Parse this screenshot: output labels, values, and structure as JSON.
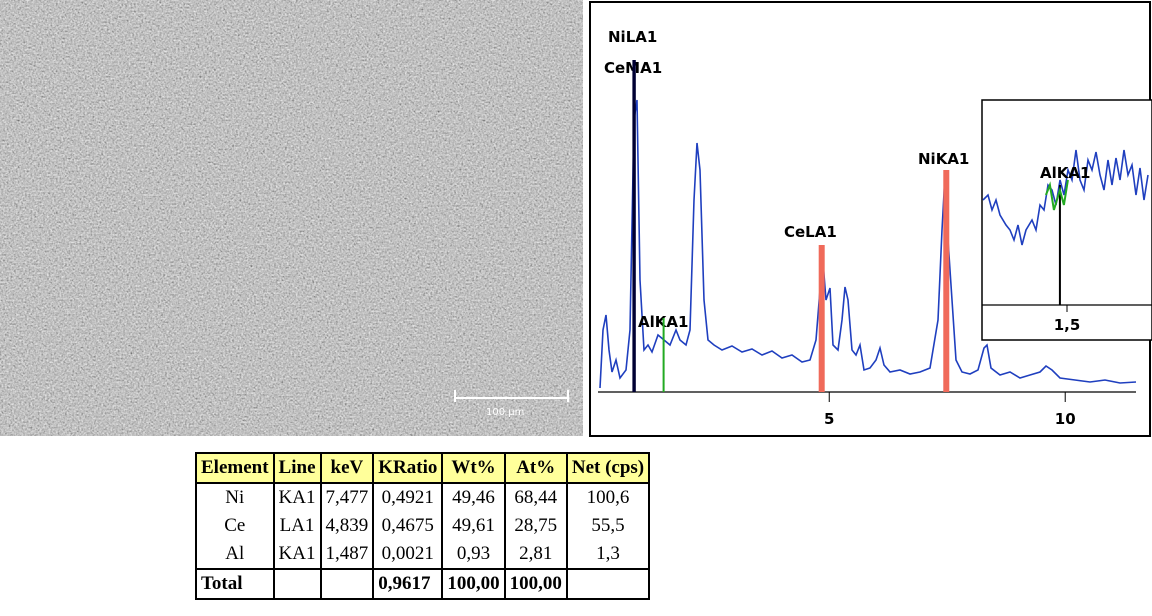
{
  "sem_image": {
    "scale_bar": "100 µm"
  },
  "spectrum": {
    "xlim": [
      0.1,
      11.5
    ],
    "xticks": [
      5,
      10
    ],
    "peaks": [
      {
        "label": "NiLA1",
        "kev": 0.85,
        "color": "#000033"
      },
      {
        "label": "CeMA1",
        "kev": 0.88,
        "color": "#000033"
      },
      {
        "label": "AlKA1",
        "kev": 1.49,
        "color": "#22aa22"
      },
      {
        "label": "CeLA1",
        "kev": 4.84,
        "color": "#f06a5a"
      },
      {
        "label": "NiKA1",
        "kev": 7.48,
        "color": "#f06a5a"
      }
    ],
    "inset": {
      "xlim": [
        1.38,
        1.62
      ],
      "xticks": [
        {
          "value": 1.5,
          "label": "1,5"
        }
      ],
      "peak": {
        "label": "AlKA1",
        "kev": 1.49,
        "color": "#22aa22"
      }
    }
  },
  "table": {
    "header": [
      "Element",
      "Line",
      "keV",
      "KRatio",
      "Wt%",
      "At%",
      "Net (cps)"
    ],
    "rows": [
      [
        "Ni",
        "KA1",
        "7,477",
        "0,4921",
        "49,46",
        "68,44",
        "100,6"
      ],
      [
        "Ce",
        "LA1",
        "4,839",
        "0,4675",
        "49,61",
        "28,75",
        "55,5"
      ],
      [
        "Al",
        "KA1",
        "1,487",
        "0,0021",
        "0,93",
        "2,81",
        "1,3"
      ]
    ],
    "total": {
      "label": "Total",
      "kratio": "0,9617",
      "wt": "100,00",
      "at": "100,00"
    }
  }
}
